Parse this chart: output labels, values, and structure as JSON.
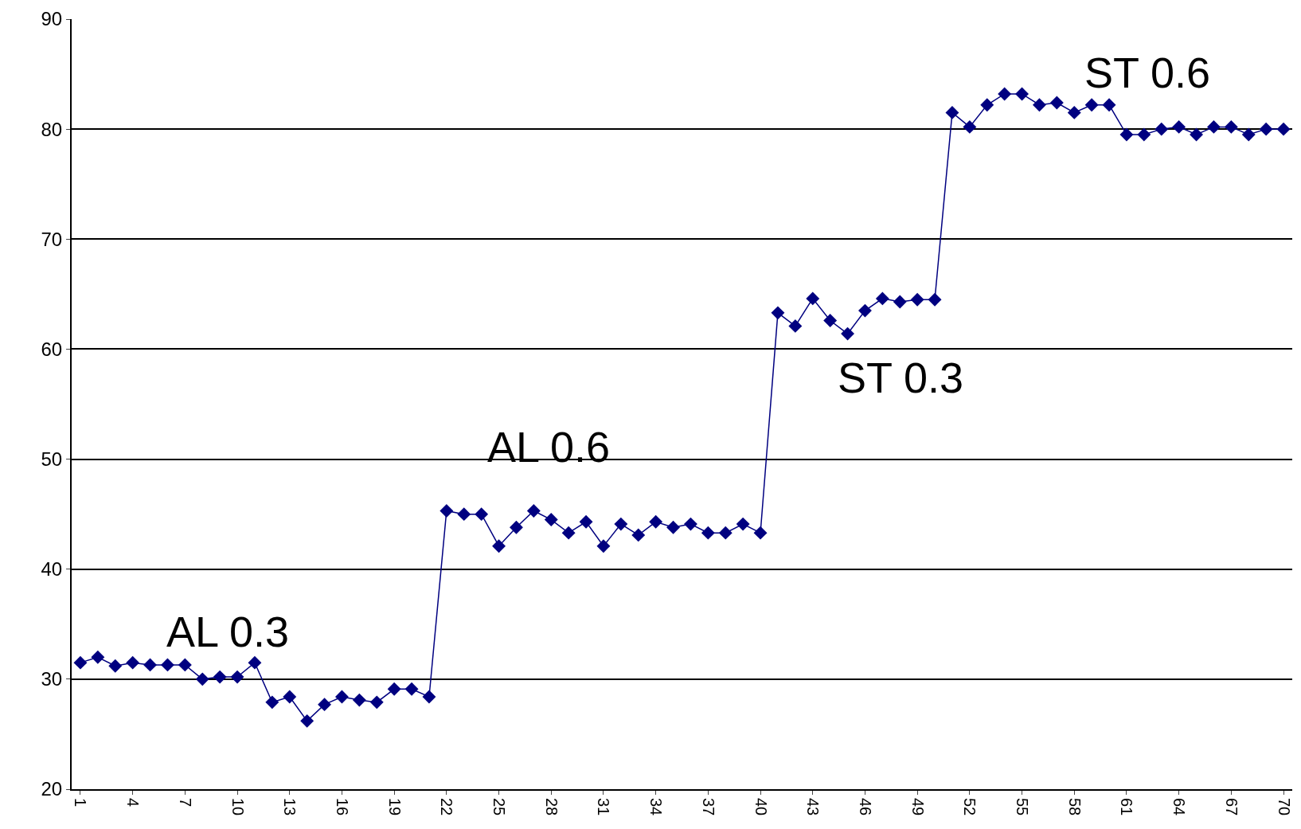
{
  "chart_data": {
    "type": "line",
    "categories": [
      "1",
      null,
      null,
      "4",
      null,
      null,
      "7",
      null,
      null,
      "10",
      null,
      null,
      "13",
      null,
      null,
      "16",
      null,
      null,
      "19",
      null,
      null,
      "22",
      null,
      null,
      "25",
      null,
      null,
      "28",
      null,
      null,
      "31",
      null,
      null,
      "34",
      null,
      null,
      "37",
      null,
      null,
      "40",
      null,
      null,
      "43",
      null,
      null,
      "46",
      null,
      null,
      "49",
      null,
      null,
      "52",
      null,
      null,
      "55",
      null,
      null,
      "58",
      null,
      null,
      "61",
      null,
      null,
      "64",
      null,
      null,
      "67",
      null,
      null,
      "70"
    ],
    "series": [
      {
        "color": "#000080",
        "values": [
          31.5,
          32.0,
          31.2,
          31.5,
          31.3,
          31.3,
          31.3,
          30.0,
          30.2,
          30.2,
          31.5,
          27.9,
          28.4,
          26.2,
          27.7,
          28.4,
          28.1,
          27.9,
          29.1,
          29.1,
          28.4,
          45.3,
          45.0,
          45.0,
          42.1,
          43.8,
          45.3,
          44.5,
          43.3,
          44.3,
          42.1,
          44.1,
          43.1,
          44.3,
          43.8,
          44.1,
          43.3,
          43.3,
          44.1,
          43.3,
          63.3,
          62.1,
          64.6,
          62.6,
          61.4,
          63.5,
          64.6,
          64.3,
          64.5,
          64.5,
          81.5,
          80.2,
          82.2,
          83.2,
          83.2,
          82.2,
          82.4,
          81.5,
          82.2,
          82.2,
          79.5,
          79.5,
          80.0,
          80.2,
          79.5,
          80.2,
          80.2,
          79.5,
          80.0,
          80.0
        ]
      }
    ],
    "ylim": [
      20,
      90
    ],
    "yticks": [
      20,
      30,
      40,
      50,
      60,
      70,
      80,
      90
    ],
    "grid": "y",
    "marker": "diamond",
    "line_style": "solid",
    "annotations": [
      "AL 0.3",
      "AL 0.6",
      "ST 0.3",
      "ST 0.6"
    ]
  }
}
